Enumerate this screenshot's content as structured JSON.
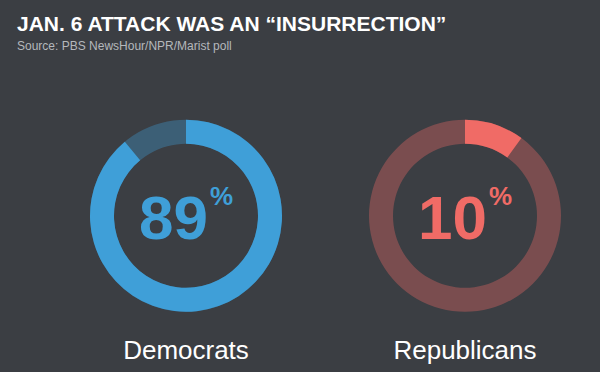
{
  "chart_data": {
    "type": "gauge",
    "title": "JAN. 6 ATTACK WAS AN “INSURRECTION”",
    "subtitle": "Source: PBS NewsHour/NPR/Marist poll",
    "categories": [
      "Democrats",
      "Republicans"
    ],
    "values": [
      89,
      10
    ],
    "value_labels": [
      "89%",
      "10%"
    ],
    "colors": [
      "#3f9fd8",
      "#f06b66"
    ],
    "ylim": [
      0,
      100
    ],
    "data_labels": true,
    "tick_labels": false
  }
}
